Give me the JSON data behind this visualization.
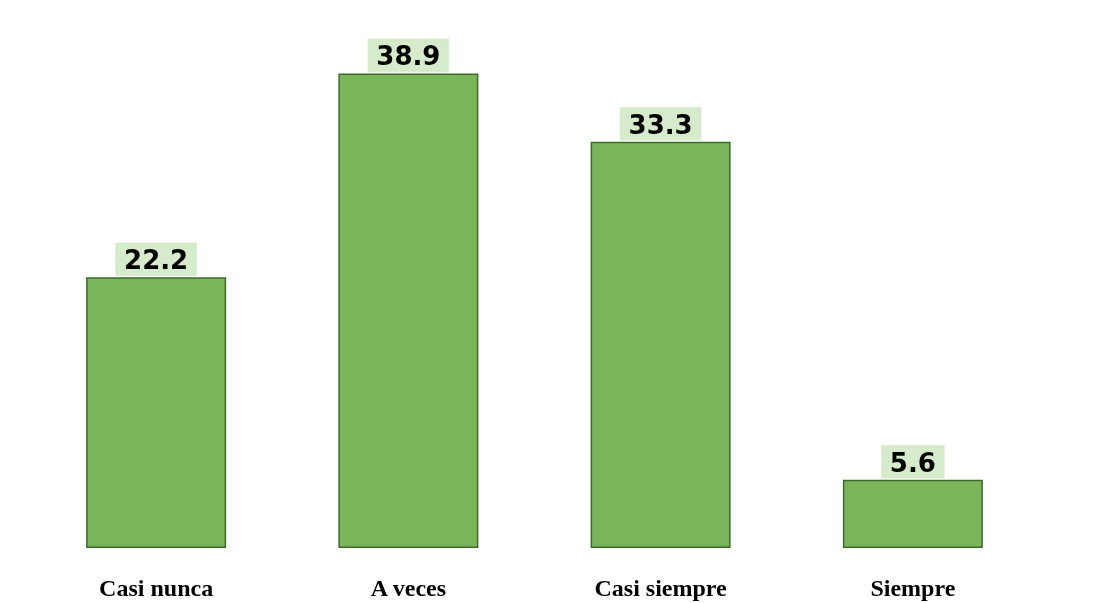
{
  "chart_data": {
    "type": "bar",
    "categories": [
      "Casi nunca",
      "A veces",
      "Casi siempre",
      "Siempre"
    ],
    "values": [
      22.2,
      38.9,
      33.3,
      5.6
    ],
    "color": "#7ab55c",
    "data_labels": true
  }
}
